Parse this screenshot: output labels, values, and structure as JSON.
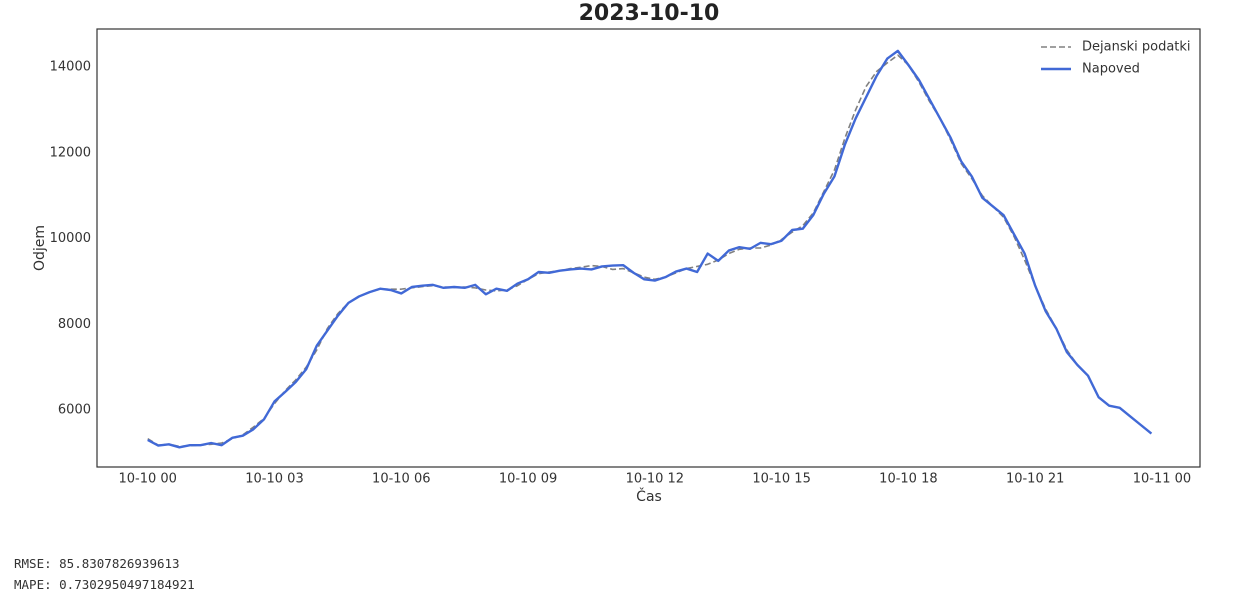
{
  "chart_data": {
    "type": "line",
    "title": "2023-10-10",
    "xlabel": "Čas",
    "ylabel": "Odjem",
    "x": [
      0,
      0.25,
      0.5,
      0.75,
      1,
      1.25,
      1.5,
      1.75,
      2,
      2.25,
      2.5,
      2.75,
      3,
      3.25,
      3.5,
      3.75,
      4,
      4.25,
      4.5,
      4.75,
      5,
      5.25,
      5.5,
      5.75,
      6,
      6.25,
      6.5,
      6.75,
      7,
      7.25,
      7.5,
      7.75,
      8,
      8.25,
      8.5,
      8.75,
      9,
      9.25,
      9.5,
      9.75,
      10,
      10.25,
      10.5,
      10.75,
      11,
      11.25,
      11.5,
      11.75,
      12,
      12.25,
      12.5,
      12.75,
      13,
      13.25,
      13.5,
      13.75,
      14,
      14.25,
      14.5,
      14.75,
      15,
      15.25,
      15.5,
      15.75,
      16,
      16.25,
      16.5,
      16.75,
      17,
      17.25,
      17.5,
      17.75,
      18,
      18.25,
      18.5,
      18.75,
      19,
      19.25,
      19.5,
      19.75,
      20,
      20.25,
      20.5,
      20.75,
      21,
      21.25,
      21.5,
      21.75,
      22,
      22.25,
      22.5,
      22.75,
      23,
      23.25,
      23.5,
      23.75
    ],
    "series": [
      {
        "name": "Dejanski podatki",
        "color": "#808080",
        "linestyle": "dashed",
        "values": [
          5330,
          5180,
          5200,
          5150,
          5170,
          5180,
          5200,
          5230,
          5330,
          5420,
          5600,
          5800,
          6150,
          6450,
          6700,
          7000,
          7400,
          7900,
          8250,
          8500,
          8650,
          8750,
          8820,
          8820,
          8820,
          8850,
          8880,
          8900,
          8870,
          8860,
          8870,
          8850,
          8800,
          8780,
          8800,
          8900,
          9050,
          9180,
          9220,
          9250,
          9300,
          9330,
          9370,
          9350,
          9280,
          9300,
          9200,
          9100,
          9050,
          9100,
          9200,
          9300,
          9350,
          9400,
          9500,
          9650,
          9750,
          9780,
          9780,
          9850,
          9980,
          10150,
          10300,
          10600,
          11100,
          11600,
          12350,
          13000,
          13550,
          13900,
          14100,
          14280,
          14050,
          13650,
          13200,
          12800,
          12300,
          11750,
          11400,
          11000,
          10750,
          10500,
          10050,
          9500,
          8900,
          8350,
          7900,
          7400,
          7050,
          6800,
          6300,
          6100,
          6050,
          5850,
          5650,
          5450
        ]
      },
      {
        "name": "Napoved",
        "color": "#4169d6",
        "linestyle": "solid",
        "values": [
          5300,
          5170,
          5200,
          5130,
          5180,
          5180,
          5230,
          5180,
          5350,
          5400,
          5550,
          5780,
          6200,
          6420,
          6650,
          6950,
          7500,
          7850,
          8200,
          8500,
          8650,
          8750,
          8830,
          8800,
          8720,
          8870,
          8900,
          8920,
          8850,
          8870,
          8850,
          8920,
          8700,
          8830,
          8780,
          8950,
          9050,
          9220,
          9200,
          9250,
          9280,
          9300,
          9280,
          9350,
          9370,
          9380,
          9200,
          9050,
          9020,
          9100,
          9230,
          9300,
          9220,
          9650,
          9480,
          9720,
          9800,
          9760,
          9900,
          9870,
          9950,
          10200,
          10230,
          10550,
          11050,
          11450,
          12200,
          12800,
          13300,
          13800,
          14200,
          14380,
          14050,
          13700,
          13250,
          12800,
          12350,
          11800,
          11450,
          10950,
          10750,
          10550,
          10100,
          9650,
          8900,
          8300,
          7900,
          7350,
          7050,
          6800,
          6300,
          6100,
          6050,
          5850,
          5650,
          5450
        ]
      }
    ],
    "xlim": [
      -1.2,
      24.9
    ],
    "xticks": [
      {
        "value": 0,
        "label": "10-10 00"
      },
      {
        "value": 3,
        "label": "10-10 03"
      },
      {
        "value": 6,
        "label": "10-10 06"
      },
      {
        "value": 9,
        "label": "10-10 09"
      },
      {
        "value": 12,
        "label": "10-10 12"
      },
      {
        "value": 15,
        "label": "10-10 15"
      },
      {
        "value": 18,
        "label": "10-10 18"
      },
      {
        "value": 21,
        "label": "10-10 21"
      },
      {
        "value": 24,
        "label": "10-11 00"
      }
    ],
    "ylim": [
      4670,
      14890
    ],
    "yticks": [
      6000,
      8000,
      10000,
      12000,
      14000
    ],
    "grid": false,
    "legend": "upper right"
  },
  "output": [
    "RMSE: 85.8307826939613",
    "MAPE: 0.7302950497184921"
  ]
}
